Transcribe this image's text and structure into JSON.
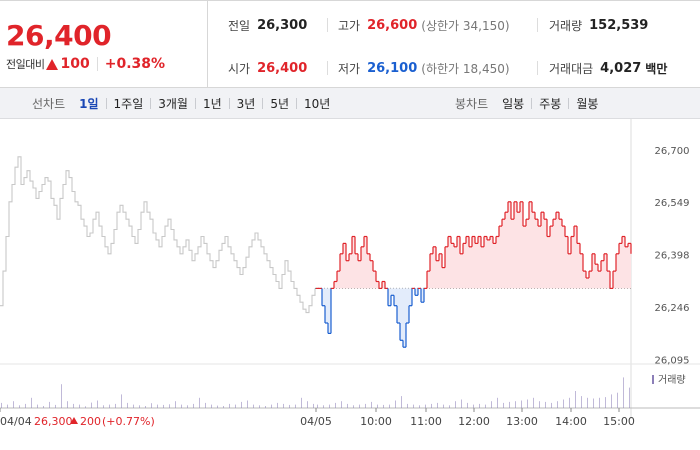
{
  "header": {
    "price": "26,400",
    "change_label": "전일대비",
    "change_value": "100",
    "change_rate": "+0.38%",
    "stats": {
      "prev_label": "전일",
      "prev_value": "26,300",
      "high_label": "고가",
      "high_value": "26,600",
      "upper_limit": "(상한가 34,150)",
      "volume_label": "거래량",
      "volume_value": "152,539",
      "open_label": "시가",
      "open_value": "26,400",
      "low_label": "저가",
      "low_value": "26,100",
      "lower_limit": "(하한가 18,450)",
      "amount_label": "거래대금",
      "amount_value": "4,027",
      "amount_unit": "백만"
    }
  },
  "tabs": {
    "line_title": "선차트",
    "line_items": [
      "1일",
      "1주일",
      "3개월",
      "1년",
      "3년",
      "5년",
      "10년"
    ],
    "line_active": 0,
    "candle_title": "봉차트",
    "candle_items": [
      "일봉",
      "주봉",
      "월봉"
    ]
  },
  "colors": {
    "up": "#e0242a",
    "down": "#1a5fd0",
    "prev_day_line": "#c8c8c8",
    "volume_bar": "#8c7fb8"
  },
  "chart_data": {
    "type": "line",
    "ylim": [
      26070,
      26720
    ],
    "yticks": [
      "26,700",
      "26,549",
      "26,398",
      "26,246",
      "26,095"
    ],
    "ytick_values": [
      26700,
      26549,
      26398,
      26246,
      26095
    ],
    "baseline": 26300,
    "x_labels": [
      "04/04",
      "04/05",
      "10:00",
      "11:00",
      "12:00",
      "13:00",
      "14:00",
      "15:00"
    ],
    "volume_legend": "거래량",
    "prev_day_summary": {
      "date": "04/04",
      "close": "26,300",
      "change": "200",
      "rate": "(+0.77%)"
    },
    "series": [
      {
        "x": [
          0,
          3,
          6,
          9,
          12,
          15,
          18,
          21,
          24,
          27,
          30,
          33,
          36,
          39,
          42,
          45,
          48,
          51,
          54,
          57,
          60,
          63,
          66,
          69,
          72,
          75,
          78,
          81,
          84,
          87,
          90,
          93,
          96,
          99,
          102,
          105,
          108,
          111,
          114,
          117,
          120,
          123,
          126,
          129,
          132,
          135,
          138,
          141,
          144,
          147,
          150,
          153,
          156,
          159,
          162,
          165,
          168,
          171,
          174,
          177,
          180,
          183,
          186,
          189,
          192,
          195,
          198,
          201,
          204,
          207,
          210,
          213,
          216,
          219,
          222,
          225,
          228,
          231,
          234,
          237,
          240,
          243,
          246,
          249,
          252,
          255,
          258,
          261,
          264,
          267,
          270,
          273,
          276,
          279,
          282,
          285,
          288,
          291,
          294,
          297,
          300,
          303,
          306,
          309,
          312,
          315
        ],
        "values": [
          26250,
          26350,
          26450,
          26550,
          26600,
          26650,
          26680,
          26600,
          26620,
          26640,
          26610,
          26590,
          26560,
          26580,
          26600,
          26620,
          26610,
          26560,
          26540,
          26500,
          26560,
          26600,
          26640,
          26620,
          26580,
          26550,
          26540,
          26500,
          26480,
          26450,
          26460,
          26500,
          26520,
          26480,
          26450,
          26420,
          26400,
          26430,
          26470,
          26520,
          26540,
          26520,
          26500,
          26480,
          26450,
          26430,
          26470,
          26520,
          26550,
          26520,
          26500,
          26460,
          26440,
          26420,
          26450,
          26480,
          26500,
          26470,
          26440,
          26420,
          26400,
          26420,
          26440,
          26410,
          26380,
          26400,
          26420,
          26450,
          26430,
          26400,
          26380,
          26360,
          26380,
          26410,
          26430,
          26450,
          26420,
          26400,
          26380,
          26360,
          26340,
          26360,
          26390,
          26420,
          26440,
          26460,
          26440,
          26420,
          26400,
          26380,
          26360,
          26340,
          26320,
          26300,
          26340,
          26380,
          26350,
          26320,
          26300,
          26280,
          26260,
          26240,
          26230,
          26250,
          26280,
          26300
        ]
      },
      {
        "x": [
          316,
          319,
          322,
          325,
          328,
          331,
          334,
          337,
          340,
          343,
          346,
          349,
          352,
          355,
          358,
          361,
          364,
          367,
          370,
          373,
          376,
          379,
          382,
          385,
          388,
          391,
          394,
          397,
          400,
          403,
          406,
          409,
          412,
          415,
          418,
          421,
          424,
          427,
          430,
          433,
          436,
          439,
          442,
          445,
          448,
          451,
          454,
          457,
          460,
          463,
          466,
          469,
          472,
          475,
          478,
          481,
          484,
          487,
          490,
          493,
          496,
          499,
          502,
          505,
          508,
          511,
          514,
          517,
          520,
          523,
          526,
          529,
          532,
          535,
          538,
          541,
          544,
          547,
          550,
          553,
          556,
          559,
          562,
          565,
          568,
          571,
          574,
          577,
          580,
          583,
          586,
          589,
          592,
          595,
          598,
          601,
          604,
          607,
          610,
          613,
          616,
          619,
          622,
          625,
          628,
          631
        ],
        "values": [
          26300,
          26300,
          26250,
          26200,
          26170,
          26300,
          26320,
          26350,
          26400,
          26430,
          26380,
          26400,
          26450,
          26400,
          26380,
          26420,
          26450,
          26400,
          26380,
          26350,
          26320,
          26300,
          26320,
          26300,
          26250,
          26280,
          26250,
          26200,
          26150,
          26130,
          26200,
          26250,
          26300,
          26280,
          26300,
          26260,
          26300,
          26350,
          26400,
          26420,
          26380,
          26400,
          26360,
          26420,
          26450,
          26430,
          26420,
          26450,
          26400,
          26430,
          26450,
          26420,
          26450,
          26430,
          26450,
          26420,
          26450,
          26440,
          26450,
          26430,
          26450,
          26480,
          26500,
          26520,
          26550,
          26500,
          26550,
          26520,
          26550,
          26480,
          26500,
          26550,
          26520,
          26500,
          26480,
          26520,
          26500,
          26450,
          26480,
          26500,
          26520,
          26500,
          26480,
          26450,
          26400,
          26450,
          26480,
          26430,
          26400,
          26350,
          26330,
          26350,
          26400,
          26370,
          26350,
          26380,
          26400,
          26350,
          26300,
          26350,
          26400,
          26430,
          26450,
          26420,
          26430,
          26400
        ]
      }
    ],
    "volume": [
      0.15,
      0.1,
      0.2,
      0.08,
      0.12,
      0.3,
      0.1,
      0.06,
      0.18,
      0.09,
      0.7,
      0.2,
      0.12,
      0.1,
      0.05,
      0.16,
      0.22,
      0.08,
      0.1,
      0.12,
      0.4,
      0.15,
      0.1,
      0.08,
      0.06,
      0.14,
      0.1,
      0.09,
      0.11,
      0.2,
      0.1,
      0.08,
      0.12,
      0.3,
      0.15,
      0.1,
      0.07,
      0.06,
      0.12,
      0.1,
      0.18,
      0.22,
      0.1,
      0.08,
      0.06,
      0.1,
      0.15,
      0.12,
      0.09,
      0.1,
      0.3,
      0.2,
      0.12,
      0.1,
      0.08,
      0.1,
      0.15,
      0.2,
      0.12,
      0.08,
      0.1,
      0.12,
      0.18,
      0.1,
      0.09,
      0.1,
      0.22,
      0.35,
      0.12,
      0.1,
      0.08,
      0.1,
      0.12,
      0.15,
      0.1,
      0.08,
      0.2,
      0.25,
      0.15,
      0.1,
      0.12,
      0.1,
      0.2,
      0.3,
      0.15,
      0.18,
      0.2,
      0.22,
      0.25,
      0.3,
      0.2,
      0.18,
      0.15,
      0.2,
      0.25,
      0.3,
      0.5,
      0.35,
      0.3,
      0.28,
      0.3,
      0.32,
      0.4,
      0.45,
      0.9,
      0.6
    ]
  }
}
